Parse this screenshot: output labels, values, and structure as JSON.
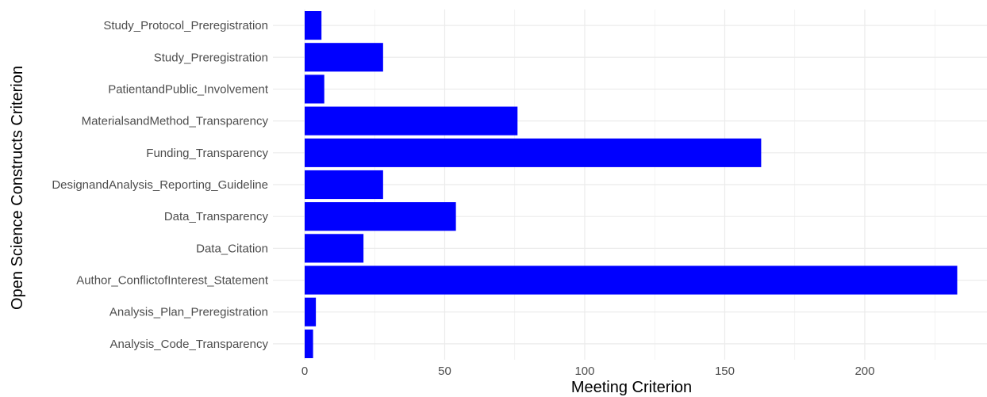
{
  "chart_data": {
    "type": "bar",
    "orientation": "horizontal",
    "categories": [
      "Study_Protocol_Preregistration",
      "Study_Preregistration",
      "PatientandPublic_Involvement",
      "MaterialsandMethod_Transparency",
      "Funding_Transparency",
      "DesignandAnalysis_Reporting_Guideline",
      "Data_Transparency",
      "Data_Citation",
      "Author_ConflictofInterest_Statement",
      "Analysis_Plan_Preregistration",
      "Analysis_Code_Transparency"
    ],
    "values": [
      6,
      28,
      7,
      76,
      163,
      28,
      54,
      21,
      233,
      4,
      3
    ],
    "xlabel": "Meeting Criterion",
    "ylabel": "Open Science Constructs Criterion",
    "xlim": [
      -11,
      240
    ],
    "xticks": [
      0,
      50,
      100,
      150,
      200
    ],
    "grid": true,
    "legend": "none",
    "bar_color": "#0000ff",
    "grid_color": "#ebebeb"
  }
}
